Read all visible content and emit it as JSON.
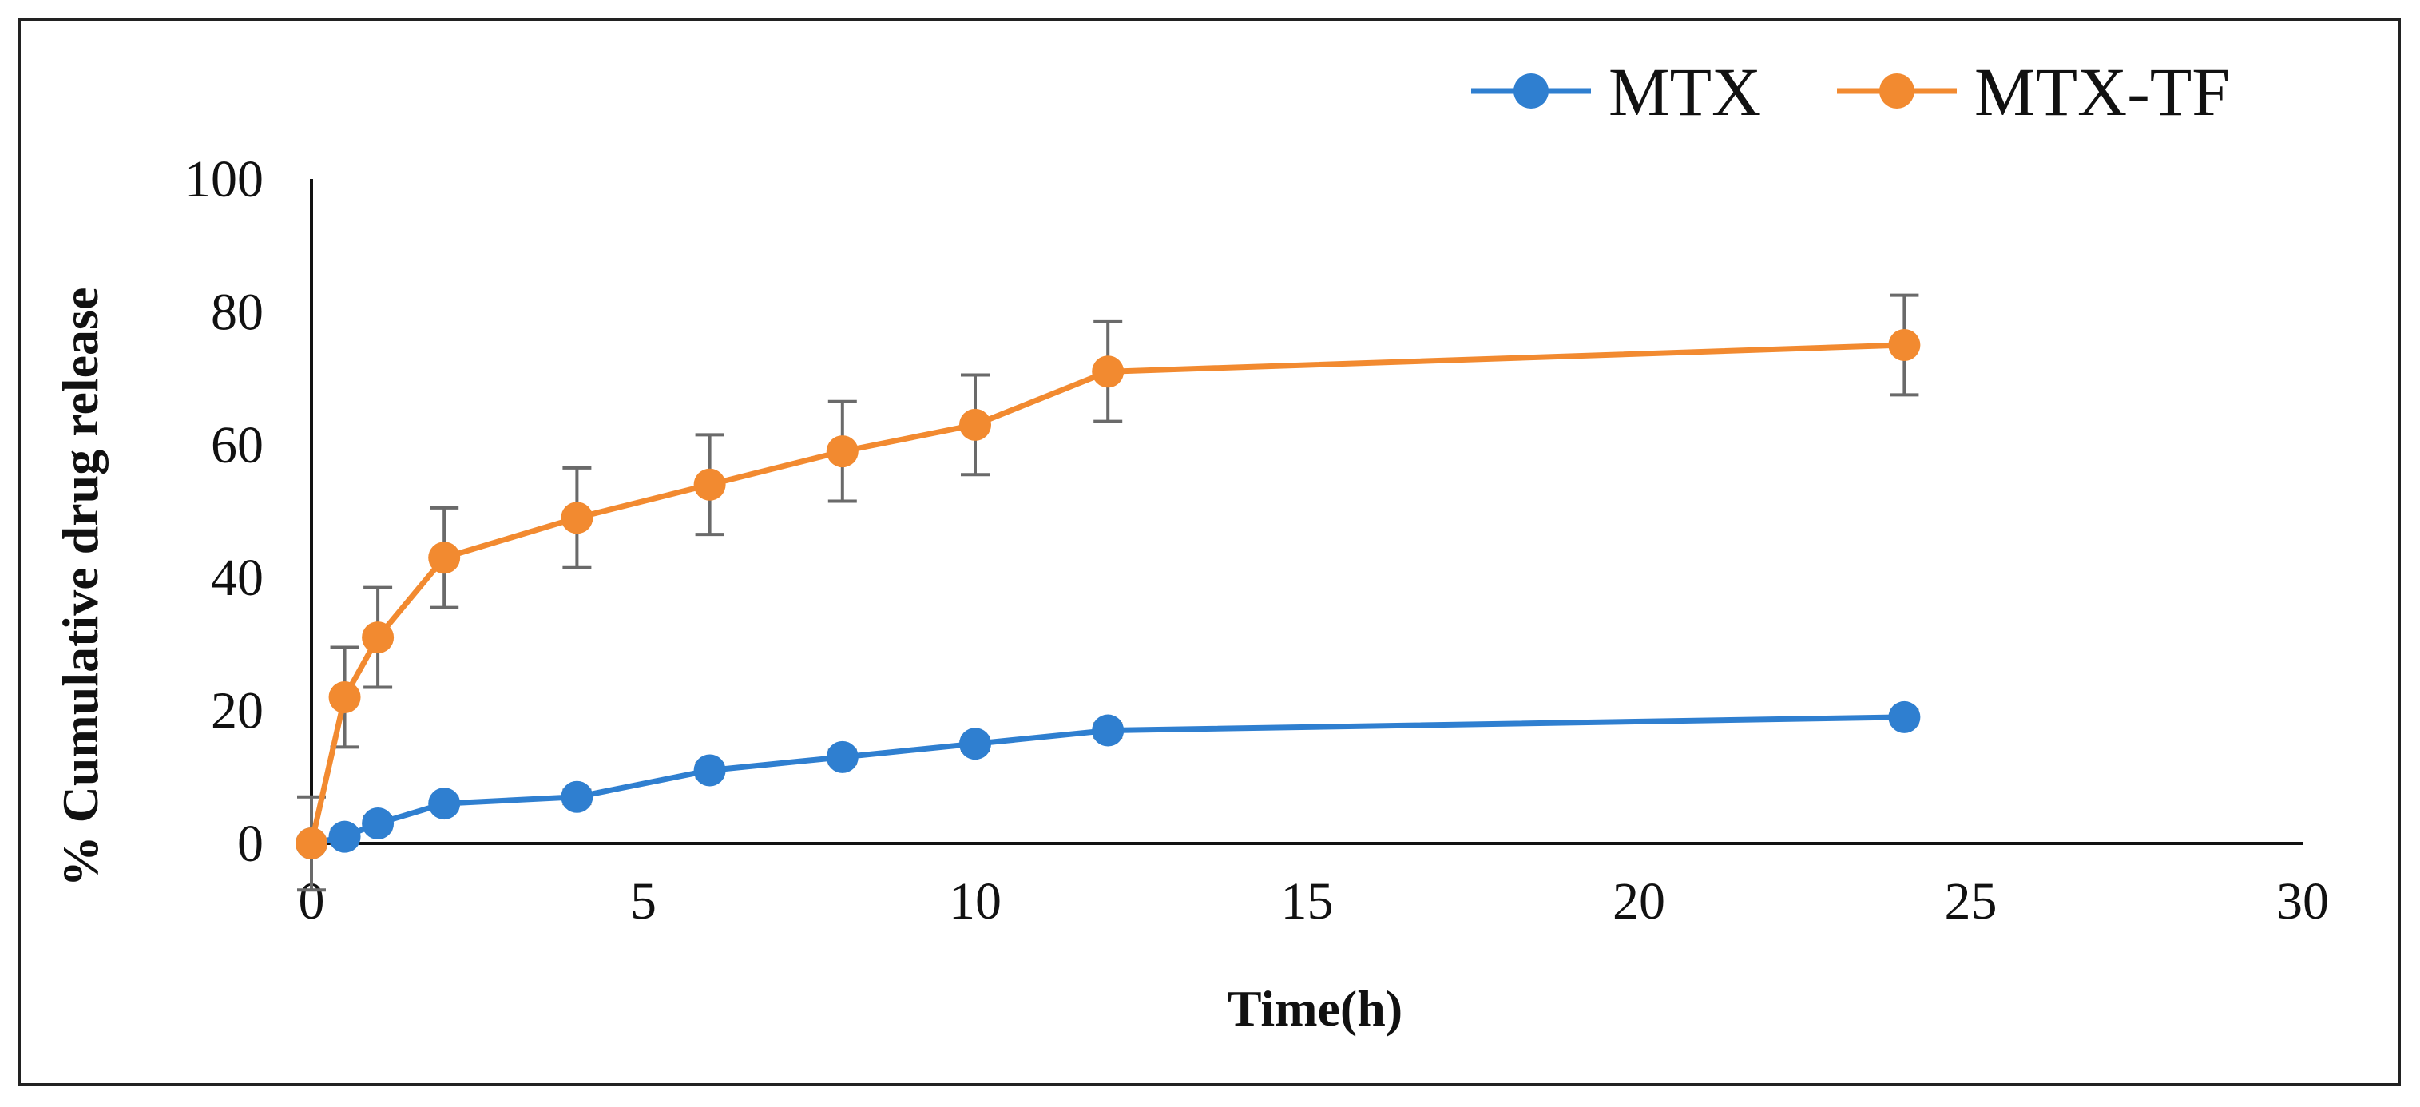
{
  "chart_data": {
    "type": "line",
    "title": "",
    "xlabel": "Time(h)",
    "ylabel": "% Cumulative drug release",
    "xlim": [
      0,
      30
    ],
    "ylim": [
      0,
      100
    ],
    "xticks": [
      0,
      5,
      10,
      15,
      20,
      25,
      30
    ],
    "yticks": [
      0,
      20,
      40,
      60,
      80,
      100
    ],
    "grid": false,
    "legend_position": "top-right",
    "x": [
      0,
      0.5,
      1,
      2,
      4,
      6,
      8,
      10,
      12,
      24
    ],
    "series": [
      {
        "name": "MTX",
        "color": "#2f7fd0",
        "values": [
          0,
          1,
          3,
          6,
          7,
          11,
          13,
          15,
          17,
          19
        ],
        "errors": [
          0,
          1,
          1,
          1,
          1,
          1,
          1,
          1,
          1,
          1
        ]
      },
      {
        "name": "MTX-TF",
        "color": "#f28a30",
        "values": [
          0,
          22,
          31,
          43,
          49,
          54,
          59,
          63,
          71,
          75
        ],
        "errors": [
          7,
          7.5,
          7.5,
          7.5,
          7.5,
          7.5,
          7.5,
          7.5,
          7.5,
          7.5
        ]
      }
    ],
    "error_bar_color": "#6a6a6a",
    "axis_color": "#111111"
  }
}
